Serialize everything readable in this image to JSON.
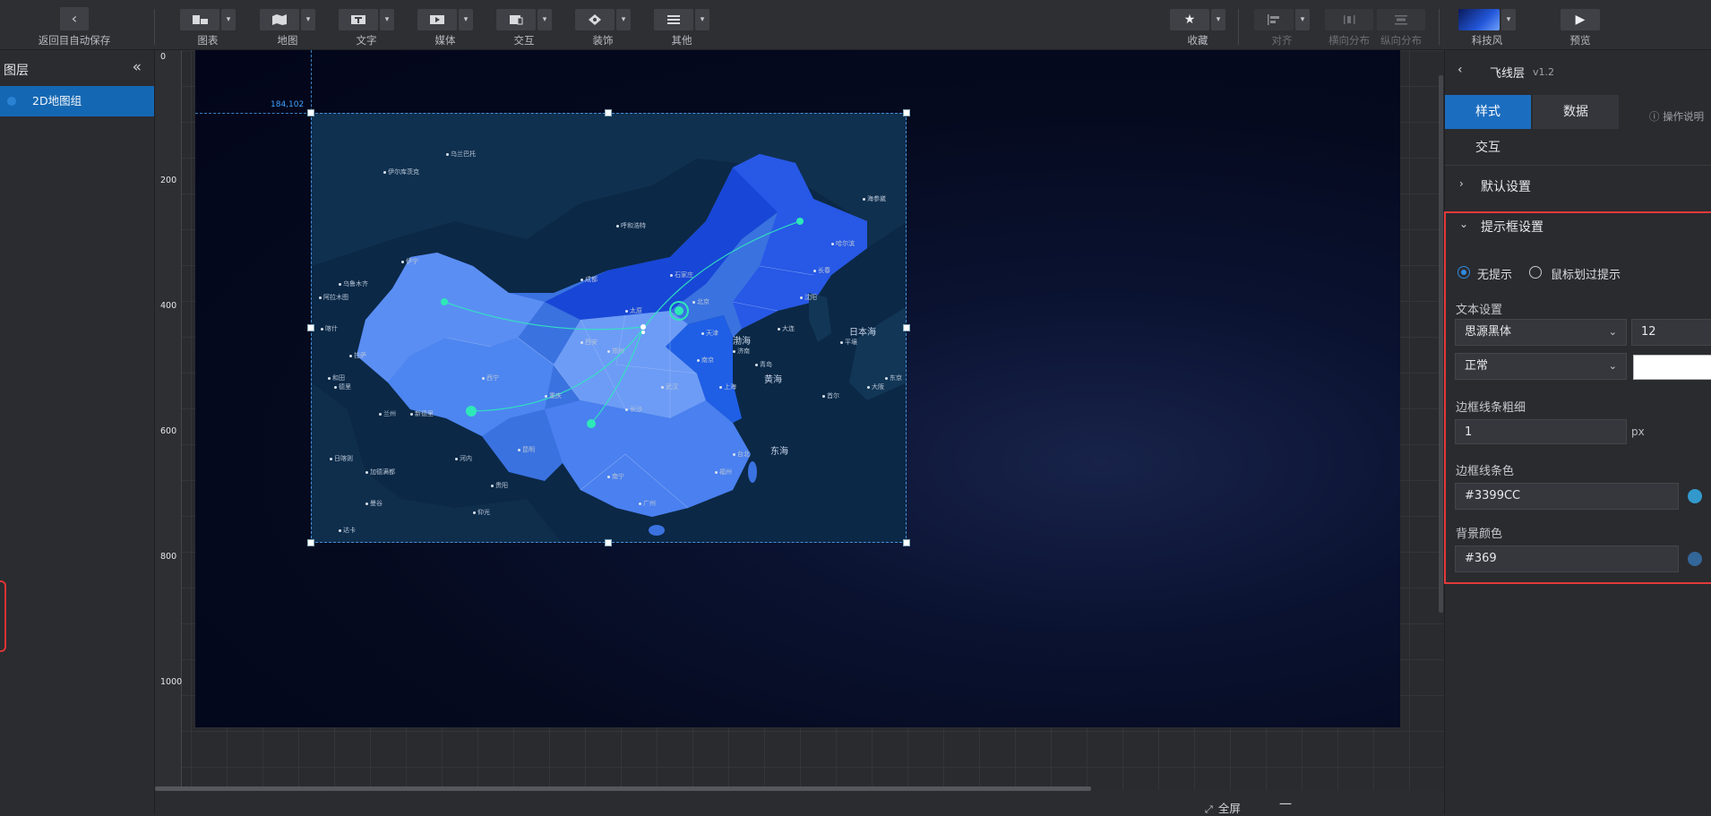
{
  "toolbar": {
    "back_label": "返回目自动保存",
    "groups": [
      {
        "label": "图表"
      },
      {
        "label": "地图"
      },
      {
        "label": "文字"
      },
      {
        "label": "媒体"
      },
      {
        "label": "交互"
      },
      {
        "label": "装饰"
      },
      {
        "label": "其他"
      }
    ],
    "right_groups": [
      {
        "label": "收藏"
      },
      {
        "label": "对齐"
      },
      {
        "label": "横向分布"
      },
      {
        "label": "纵向分布"
      },
      {
        "label": "科技风"
      },
      {
        "label": "预览"
      }
    ]
  },
  "layers": {
    "title": "图层",
    "items": [
      {
        "label": "2D地图组"
      }
    ]
  },
  "ruler": {
    "ticks": [
      "0",
      "200",
      "400",
      "600",
      "800",
      "1000"
    ]
  },
  "canvas": {
    "coord_label": "184,102",
    "seas": {
      "bohai": "渤海",
      "yellow": "黄海",
      "east": "东海",
      "japan": "日本海"
    },
    "cities": [
      "阿拉木图",
      "乌鲁木齐",
      "伊宁",
      "喀什",
      "和田",
      "拉萨",
      "日喀则",
      "加德满都",
      "德里",
      "新德里",
      "兰州",
      "西宁",
      "成都",
      "重庆",
      "昆明",
      "贵阳",
      "南宁",
      "广州",
      "福州",
      "台北",
      "上海",
      "南京",
      "武汉",
      "长沙",
      "郑州",
      "西安",
      "太原",
      "石家庄",
      "北京",
      "天津",
      "济南",
      "青岛",
      "大连",
      "沈阳",
      "长春",
      "哈尔滨",
      "呼和浩特",
      "乌兰巴托",
      "首尔",
      "东京",
      "大阪",
      "平壤",
      "海参崴",
      "伊尔库茨克",
      "仰光",
      "河内",
      "曼谷",
      "达卡"
    ]
  },
  "bottom": {
    "fullscreen": "全屏",
    "zoom_minus": "一"
  },
  "panel": {
    "name": "飞线层",
    "version": "v1.2",
    "tabs": [
      {
        "label": "样式"
      },
      {
        "label": "数据"
      },
      {
        "label": "交互"
      }
    ],
    "help": "操作说明",
    "default_section": "默认设置",
    "tip_section": "提示框设置",
    "radio_none": "无提示",
    "radio_hover": "鼠标划过提示",
    "text_settings": "文本设置",
    "font_family": "思源黑体",
    "font_size": "12",
    "font_weight": "正常",
    "border_width_label": "边框线条粗细",
    "border_width": "1",
    "border_width_unit": "px",
    "border_color_label": "边框线条色",
    "border_color": "#3399CC",
    "bg_color_label": "背景颜色",
    "bg_color": "#369"
  }
}
